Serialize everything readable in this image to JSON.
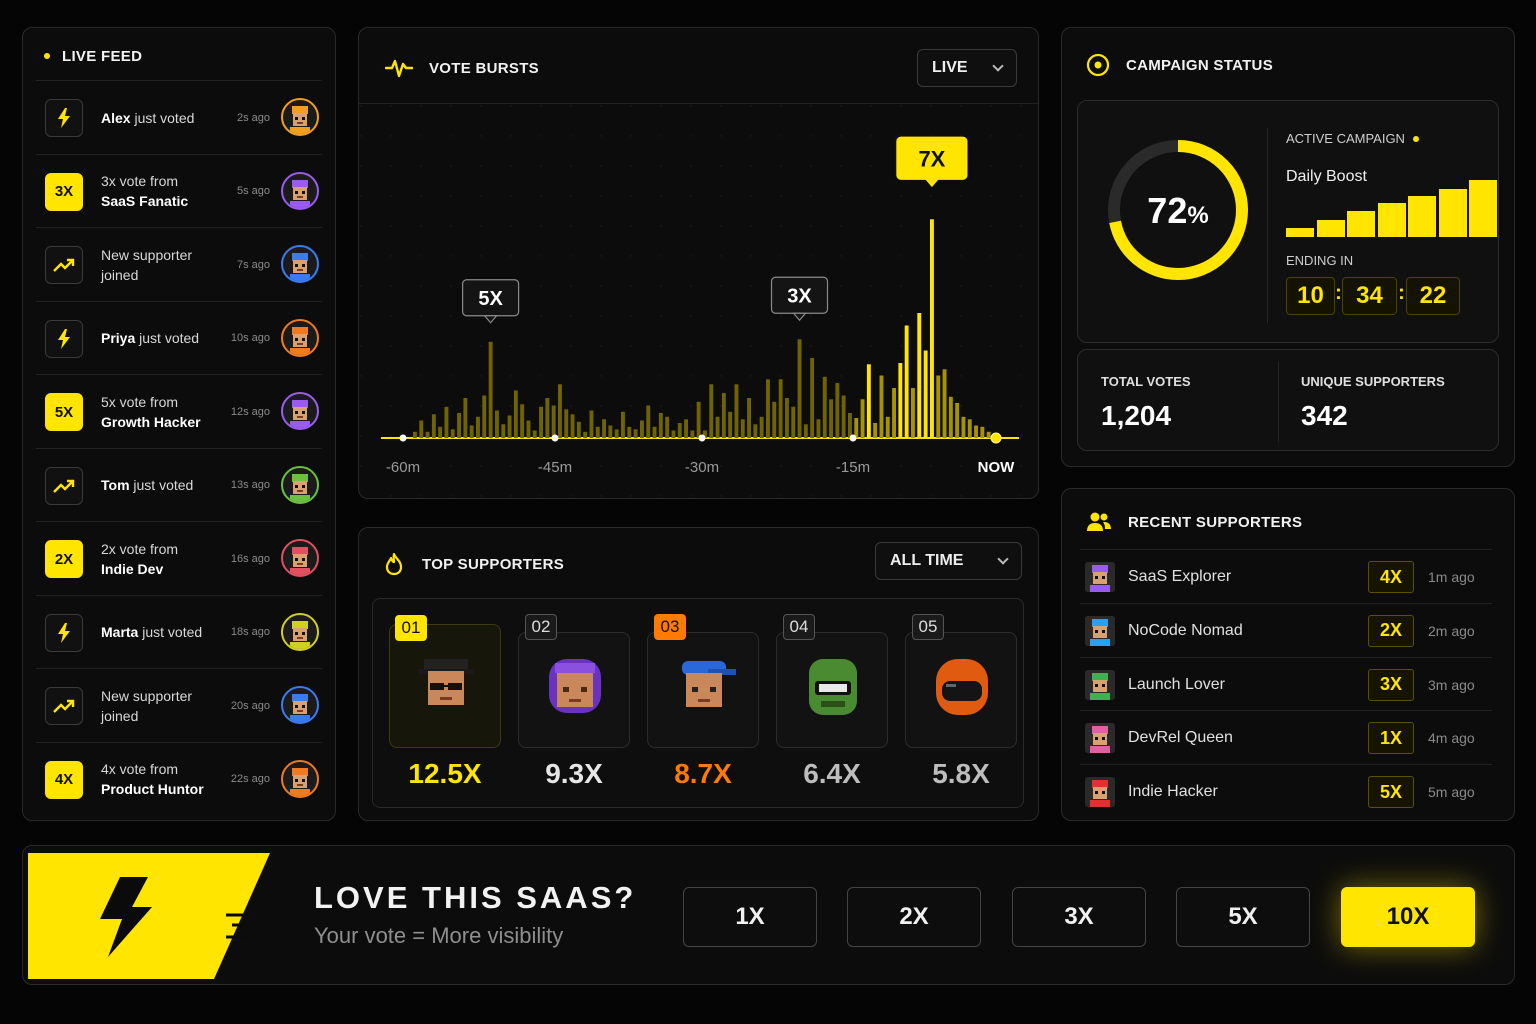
{
  "live_feed": {
    "title": "LIVE FEED",
    "items": [
      {
        "icon": "bolt-icon",
        "badge": "",
        "name": "Alex",
        "text": "just voted",
        "line1": "",
        "line2": "",
        "ago": "2s ago",
        "avatar_color": "#f0a020"
      },
      {
        "icon": "",
        "badge": "3X",
        "name": "",
        "text": "",
        "line1": "3x vote from",
        "line2": "SaaS Fanatic",
        "ago": "5s ago",
        "avatar_color": "#9a5cf0"
      },
      {
        "icon": "trend-icon",
        "badge": "",
        "name": "",
        "text": "",
        "line1": "New supporter",
        "line2": "joined",
        "ago": "7s ago",
        "avatar_color": "#3a7cf0"
      },
      {
        "icon": "bolt-icon",
        "badge": "",
        "name": "Priya",
        "text": "just voted",
        "line1": "",
        "line2": "",
        "ago": "10s ago",
        "avatar_color": "#f07a20"
      },
      {
        "icon": "",
        "badge": "5X",
        "name": "",
        "text": "",
        "line1": "5x vote from",
        "line2": "Growth Hacker",
        "ago": "12s ago",
        "avatar_color": "#9a5cf0"
      },
      {
        "icon": "trend-icon",
        "badge": "",
        "name": "Tom",
        "text": "just voted",
        "line1": "",
        "line2": "",
        "ago": "13s ago",
        "avatar_color": "#6ac040"
      },
      {
        "icon": "",
        "badge": "2X",
        "name": "",
        "text": "",
        "line1": "2x vote from",
        "line2": "Indie Dev",
        "ago": "16s ago",
        "avatar_color": "#e05060"
      },
      {
        "icon": "bolt-icon",
        "badge": "",
        "name": "Marta",
        "text": "just voted",
        "line1": "",
        "line2": "",
        "ago": "18s ago",
        "avatar_color": "#d0d020"
      },
      {
        "icon": "trend-icon",
        "badge": "",
        "name": "",
        "text": "",
        "line1": "New supporter",
        "line2": "joined",
        "ago": "20s ago",
        "avatar_color": "#3a7cf0"
      },
      {
        "icon": "",
        "badge": "4X",
        "name": "",
        "text": "",
        "line1": "4x vote from",
        "line2": "Product Huntor",
        "ago": "22s ago",
        "avatar_color": "#f07a20"
      }
    ]
  },
  "vote_bursts": {
    "title": "VOTE BURSTS",
    "range_select": "LIVE",
    "callouts": [
      "5X",
      "3X",
      "7X"
    ],
    "axis_labels": [
      "-60m",
      "-45m",
      "-30m",
      "-15m",
      "NOW"
    ]
  },
  "chart_data": {
    "type": "bar",
    "xlabel": "",
    "ylabel": "",
    "x_range": [
      "-60m",
      "NOW"
    ],
    "values": [
      0.05,
      0.14,
      0.05,
      0.19,
      0.09,
      0.25,
      0.07,
      0.2,
      0.32,
      0.1,
      0.17,
      0.34,
      0.77,
      0.22,
      0.11,
      0.18,
      0.38,
      0.27,
      0.14,
      0.06,
      0.25,
      0.32,
      0.26,
      0.43,
      0.23,
      0.19,
      0.13,
      0.05,
      0.22,
      0.09,
      0.15,
      0.1,
      0.07,
      0.21,
      0.09,
      0.07,
      0.14,
      0.26,
      0.09,
      0.2,
      0.17,
      0.06,
      0.12,
      0.15,
      0.06,
      0.29,
      0.06,
      0.43,
      0.17,
      0.36,
      0.21,
      0.43,
      0.15,
      0.32,
      0.11,
      0.17,
      0.47,
      0.29,
      0.47,
      0.32,
      0.25,
      0.79,
      0.11,
      0.64,
      0.15,
      0.49,
      0.31,
      0.44,
      0.34,
      0.2,
      0.16,
      0.31,
      0.59,
      0.12,
      0.5,
      0.17,
      0.4,
      0.6,
      0.9,
      0.4,
      1.0,
      0.7,
      1.75,
      0.5,
      0.55,
      0.33,
      0.28,
      0.17,
      0.15,
      0.1,
      0.09,
      0.05
    ],
    "annotations": [
      {
        "label": "5X"
      },
      {
        "label": "3X"
      },
      {
        "label": "7X"
      }
    ]
  },
  "campaign": {
    "title": "CAMPAIGN STATUS",
    "percent": "72",
    "percent_sign": "%",
    "progress": 0.72,
    "active_label": "ACTIVE CAMPAIGN",
    "name": "Daily Boost",
    "bars": [
      0.15,
      0.3,
      0.45,
      0.6,
      0.72,
      0.85,
      1.0
    ],
    "ending_label": "ENDING IN",
    "time": [
      "10",
      "34",
      "22"
    ],
    "total_votes_label": "TOTAL VOTES",
    "total_votes": "1,204",
    "unique_label": "UNIQUE SUPPORTERS",
    "unique": "342"
  },
  "top_supporters": {
    "title": "TOP SUPPORTERS",
    "range_select": "ALL TIME",
    "items": [
      {
        "rank": "01",
        "mult": "12.5X",
        "color": "#ffe500",
        "avatar": "spy-hat"
      },
      {
        "rank": "02",
        "mult": "9.3X",
        "color": "#e6e6e6",
        "avatar": "purple-hood"
      },
      {
        "rank": "03",
        "mult": "8.7X",
        "color": "#ff7a00",
        "avatar": "blue-cap"
      },
      {
        "rank": "04",
        "mult": "6.4X",
        "color": "#bdbdbd",
        "avatar": "green-robot"
      },
      {
        "rank": "05",
        "mult": "5.8X",
        "color": "#bdbdbd",
        "avatar": "orange-helmet"
      }
    ]
  },
  "recent_supporters": {
    "title": "RECENT SUPPORTERS",
    "items": [
      {
        "name": "SaaS Explorer",
        "mult": "4X",
        "ago": "1m ago",
        "color": "#9a5cf0"
      },
      {
        "name": "NoCode Nomad",
        "mult": "2X",
        "ago": "2m ago",
        "color": "#2aa0f0"
      },
      {
        "name": "Launch Lover",
        "mult": "3X",
        "ago": "3m ago",
        "color": "#40b050"
      },
      {
        "name": "DevRel Queen",
        "mult": "1X",
        "ago": "4m ago",
        "color": "#e060a0"
      },
      {
        "name": "Indie Hacker",
        "mult": "5X",
        "ago": "5m ago",
        "color": "#e03030"
      }
    ]
  },
  "cta": {
    "headline": "LOVE THIS SAAS?",
    "subline": "Your vote = More visibility",
    "buttons": [
      "1X",
      "2X",
      "3X",
      "5X",
      "10X"
    ],
    "active_index": 4
  },
  "colors": {
    "accent": "#ffe500",
    "orange": "#ff7a00",
    "background": "#050505"
  }
}
